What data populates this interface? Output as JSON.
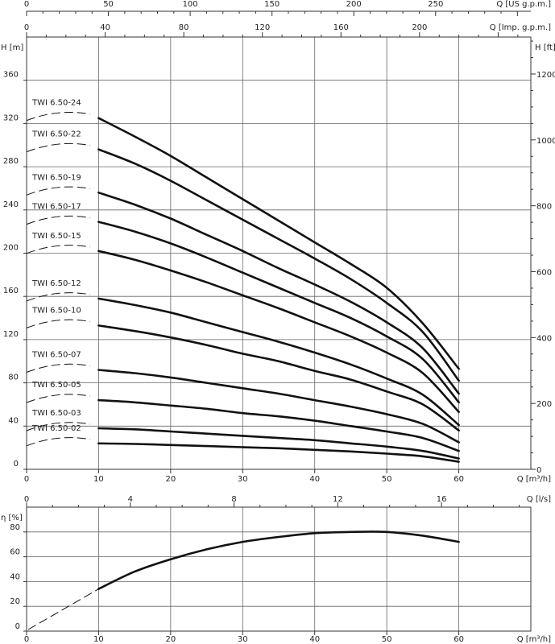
{
  "chart_data": [
    {
      "type": "line",
      "title": "",
      "xlabel": "Q [m³/h]",
      "ylabel": "H [m]",
      "xlim": [
        0,
        70
      ],
      "ylim": [
        0,
        400
      ],
      "x_ticks": [
        0,
        10,
        20,
        30,
        40,
        50,
        60
      ],
      "y_ticks": [
        0,
        40,
        80,
        120,
        160,
        200,
        240,
        280,
        320,
        360
      ],
      "grid": true,
      "secondary_axes": {
        "top_us": {
          "label": "Q [US g.p.m.]",
          "ticks": [
            0,
            50,
            100,
            150,
            200,
            250
          ]
        },
        "top_imp": {
          "label": "Q [Imp. g.p.m.]",
          "ticks": [
            0,
            40,
            80,
            120,
            160,
            200
          ]
        },
        "right_ft": {
          "label": "H [ft]",
          "ticks": [
            0,
            200,
            400,
            600,
            800,
            1000,
            1200
          ]
        },
        "bottom_ls": {
          "label": "Q [l/s]",
          "ticks": [
            0,
            4,
            8,
            12,
            16
          ]
        }
      },
      "series": [
        {
          "name": "TWI 6.50-24",
          "x": [
            10,
            15,
            20,
            25,
            30,
            35,
            40,
            45,
            50,
            55,
            60
          ],
          "values": [
            325,
            308,
            290,
            270,
            250,
            230,
            210,
            190,
            168,
            135,
            93
          ]
        },
        {
          "name": "TWI 6.50-22",
          "x": [
            10,
            15,
            20,
            25,
            30,
            35,
            40,
            45,
            50,
            55,
            60
          ],
          "values": [
            296,
            283,
            267,
            249,
            231,
            213,
            195,
            176,
            154,
            127,
            82
          ]
        },
        {
          "name": "TWI 6.50-19",
          "x": [
            10,
            15,
            20,
            25,
            30,
            35,
            40,
            45,
            50,
            55,
            60
          ],
          "values": [
            256,
            245,
            232,
            217,
            202,
            186,
            171,
            155,
            136,
            112,
            70
          ]
        },
        {
          "name": "TWI 6.50-17",
          "x": [
            10,
            15,
            20,
            25,
            30,
            35,
            40,
            45,
            50,
            55,
            60
          ],
          "values": [
            229,
            220,
            209,
            196,
            182,
            168,
            154,
            140,
            123,
            102,
            62
          ]
        },
        {
          "name": "TWI 6.50-15",
          "x": [
            10,
            15,
            20,
            25,
            30,
            35,
            40,
            45,
            50,
            55,
            60
          ],
          "values": [
            202,
            194,
            184,
            173,
            161,
            149,
            136,
            123,
            108,
            89,
            53
          ]
        },
        {
          "name": "TWI 6.50-12",
          "x": [
            10,
            15,
            20,
            25,
            30,
            35,
            40,
            45,
            50,
            55,
            60
          ],
          "values": [
            158,
            152,
            145,
            136,
            127,
            118,
            108,
            97,
            84,
            69,
            41
          ]
        },
        {
          "name": "TWI 6.50-10",
          "x": [
            10,
            15,
            20,
            25,
            30,
            35,
            40,
            45,
            50,
            55,
            60
          ],
          "values": [
            133,
            128,
            122,
            115,
            107,
            100,
            91,
            83,
            72,
            60,
            36
          ]
        },
        {
          "name": "TWI 6.50-07",
          "x": [
            10,
            15,
            20,
            25,
            30,
            35,
            40,
            45,
            50,
            55,
            60
          ],
          "values": [
            92,
            89,
            85,
            80,
            75,
            70,
            64,
            58,
            51,
            42,
            25
          ]
        },
        {
          "name": "TWI 6.50-05",
          "x": [
            10,
            15,
            20,
            25,
            30,
            35,
            40,
            45,
            50,
            55,
            60
          ],
          "values": [
            64,
            62,
            59,
            56,
            52,
            49,
            45,
            40,
            35,
            29,
            17
          ]
        },
        {
          "name": "TWI 6.50-03",
          "x": [
            10,
            15,
            20,
            25,
            30,
            35,
            40,
            45,
            50,
            55,
            60
          ],
          "values": [
            38,
            37,
            35,
            33,
            31,
            29,
            27,
            24,
            21,
            17,
            10
          ]
        },
        {
          "name": "TWI 6.50-02",
          "x": [
            10,
            15,
            20,
            25,
            30,
            35,
            40,
            45,
            50,
            55,
            60
          ],
          "values": [
            24,
            23.5,
            22.5,
            21.5,
            20.5,
            19.5,
            18,
            16.5,
            14.5,
            12,
            7
          ]
        }
      ]
    },
    {
      "type": "line",
      "title": "",
      "xlabel": "Q [m³/h]",
      "ylabel": "η [%]",
      "xlim": [
        0,
        70
      ],
      "ylim": [
        0,
        100
      ],
      "x_ticks": [
        0,
        10,
        20,
        30,
        40,
        50,
        60
      ],
      "y_ticks": [
        0,
        20,
        40,
        60,
        80
      ],
      "grid": true,
      "series": [
        {
          "name": "",
          "x": [
            10,
            15,
            20,
            25,
            30,
            35,
            40,
            45,
            50,
            55,
            60
          ],
          "values": [
            34,
            48,
            58,
            66,
            72,
            76,
            79,
            80,
            80,
            77,
            72
          ]
        }
      ]
    }
  ]
}
